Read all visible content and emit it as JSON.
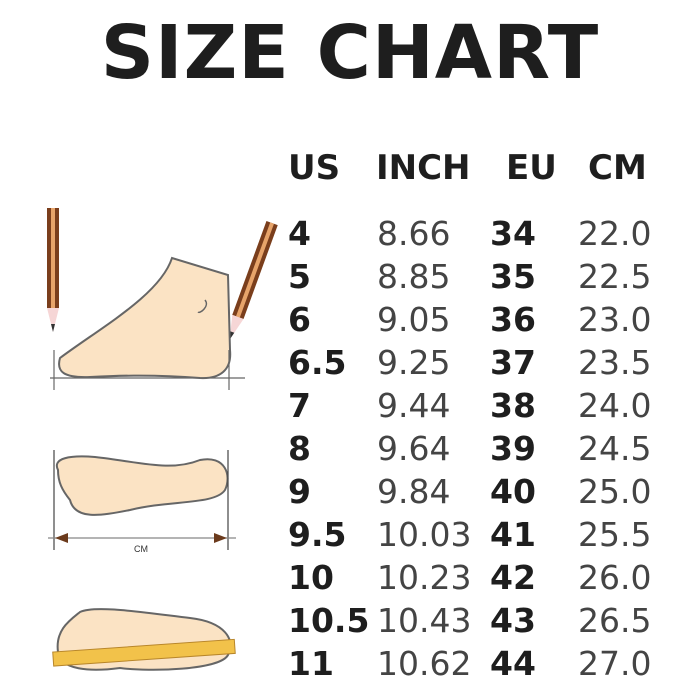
{
  "title": "SIZE CHART",
  "columns": [
    "US",
    "INCH",
    "EU",
    "CM"
  ],
  "rows": [
    [
      "4",
      "8.66",
      "34",
      "22.0"
    ],
    [
      "5",
      "8.85",
      "35",
      "22.5"
    ],
    [
      "6",
      "9.05",
      "36",
      "23.0"
    ],
    [
      "6.5",
      "9.25",
      "37",
      "23.5"
    ],
    [
      "7",
      "9.44",
      "38",
      "24.0"
    ],
    [
      "8",
      "9.64",
      "39",
      "24.5"
    ],
    [
      "9",
      "9.84",
      "40",
      "25.0"
    ],
    [
      "9.5",
      "10.03",
      "41",
      "25.5"
    ],
    [
      "10",
      "10.23",
      "42",
      "26.0"
    ],
    [
      "10.5",
      "10.43",
      "43",
      "26.5"
    ],
    [
      "11",
      "10.62",
      "44",
      "27.0"
    ]
  ],
  "illustration": {
    "measure_label": "CM",
    "colors": {
      "skin": "#fbe3c4",
      "outline": "#666666",
      "pencil": "#7a3e1c",
      "ruler": "#f2c24a"
    }
  }
}
